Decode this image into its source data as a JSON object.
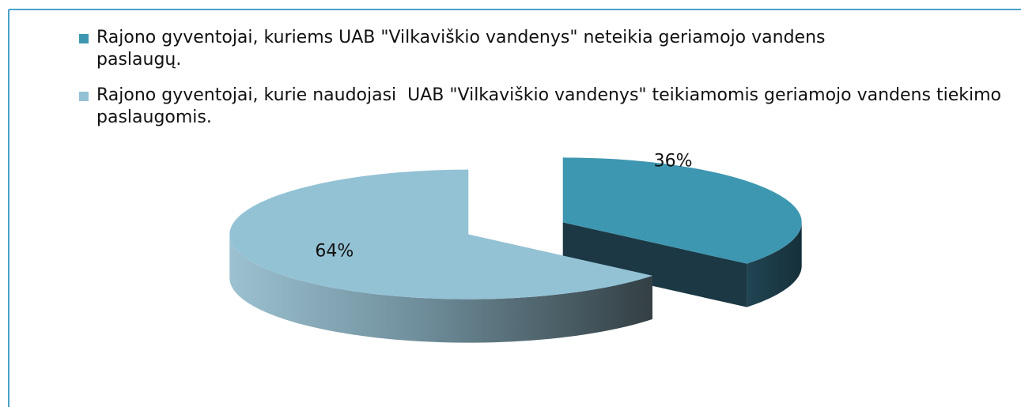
{
  "chart_data": {
    "type": "pie",
    "three_d": true,
    "exploded": true,
    "categories": [
      "Rajono gyventojai, kuriems UAB \"Vilkaviškio vandenys\" neteikia geriamojo vandens paslaugų.",
      "Rajono gyventojai, kurie naudojasi  UAB \"Vilkaviškio vandenys\" teikiamomis geriamojo vandens tiekimo paslaugomis."
    ],
    "values": [
      36,
      64
    ],
    "value_labels": [
      "36%",
      "64%"
    ],
    "colors": [
      "#3e97b1",
      "#93c2d5"
    ],
    "legend": "top"
  }
}
